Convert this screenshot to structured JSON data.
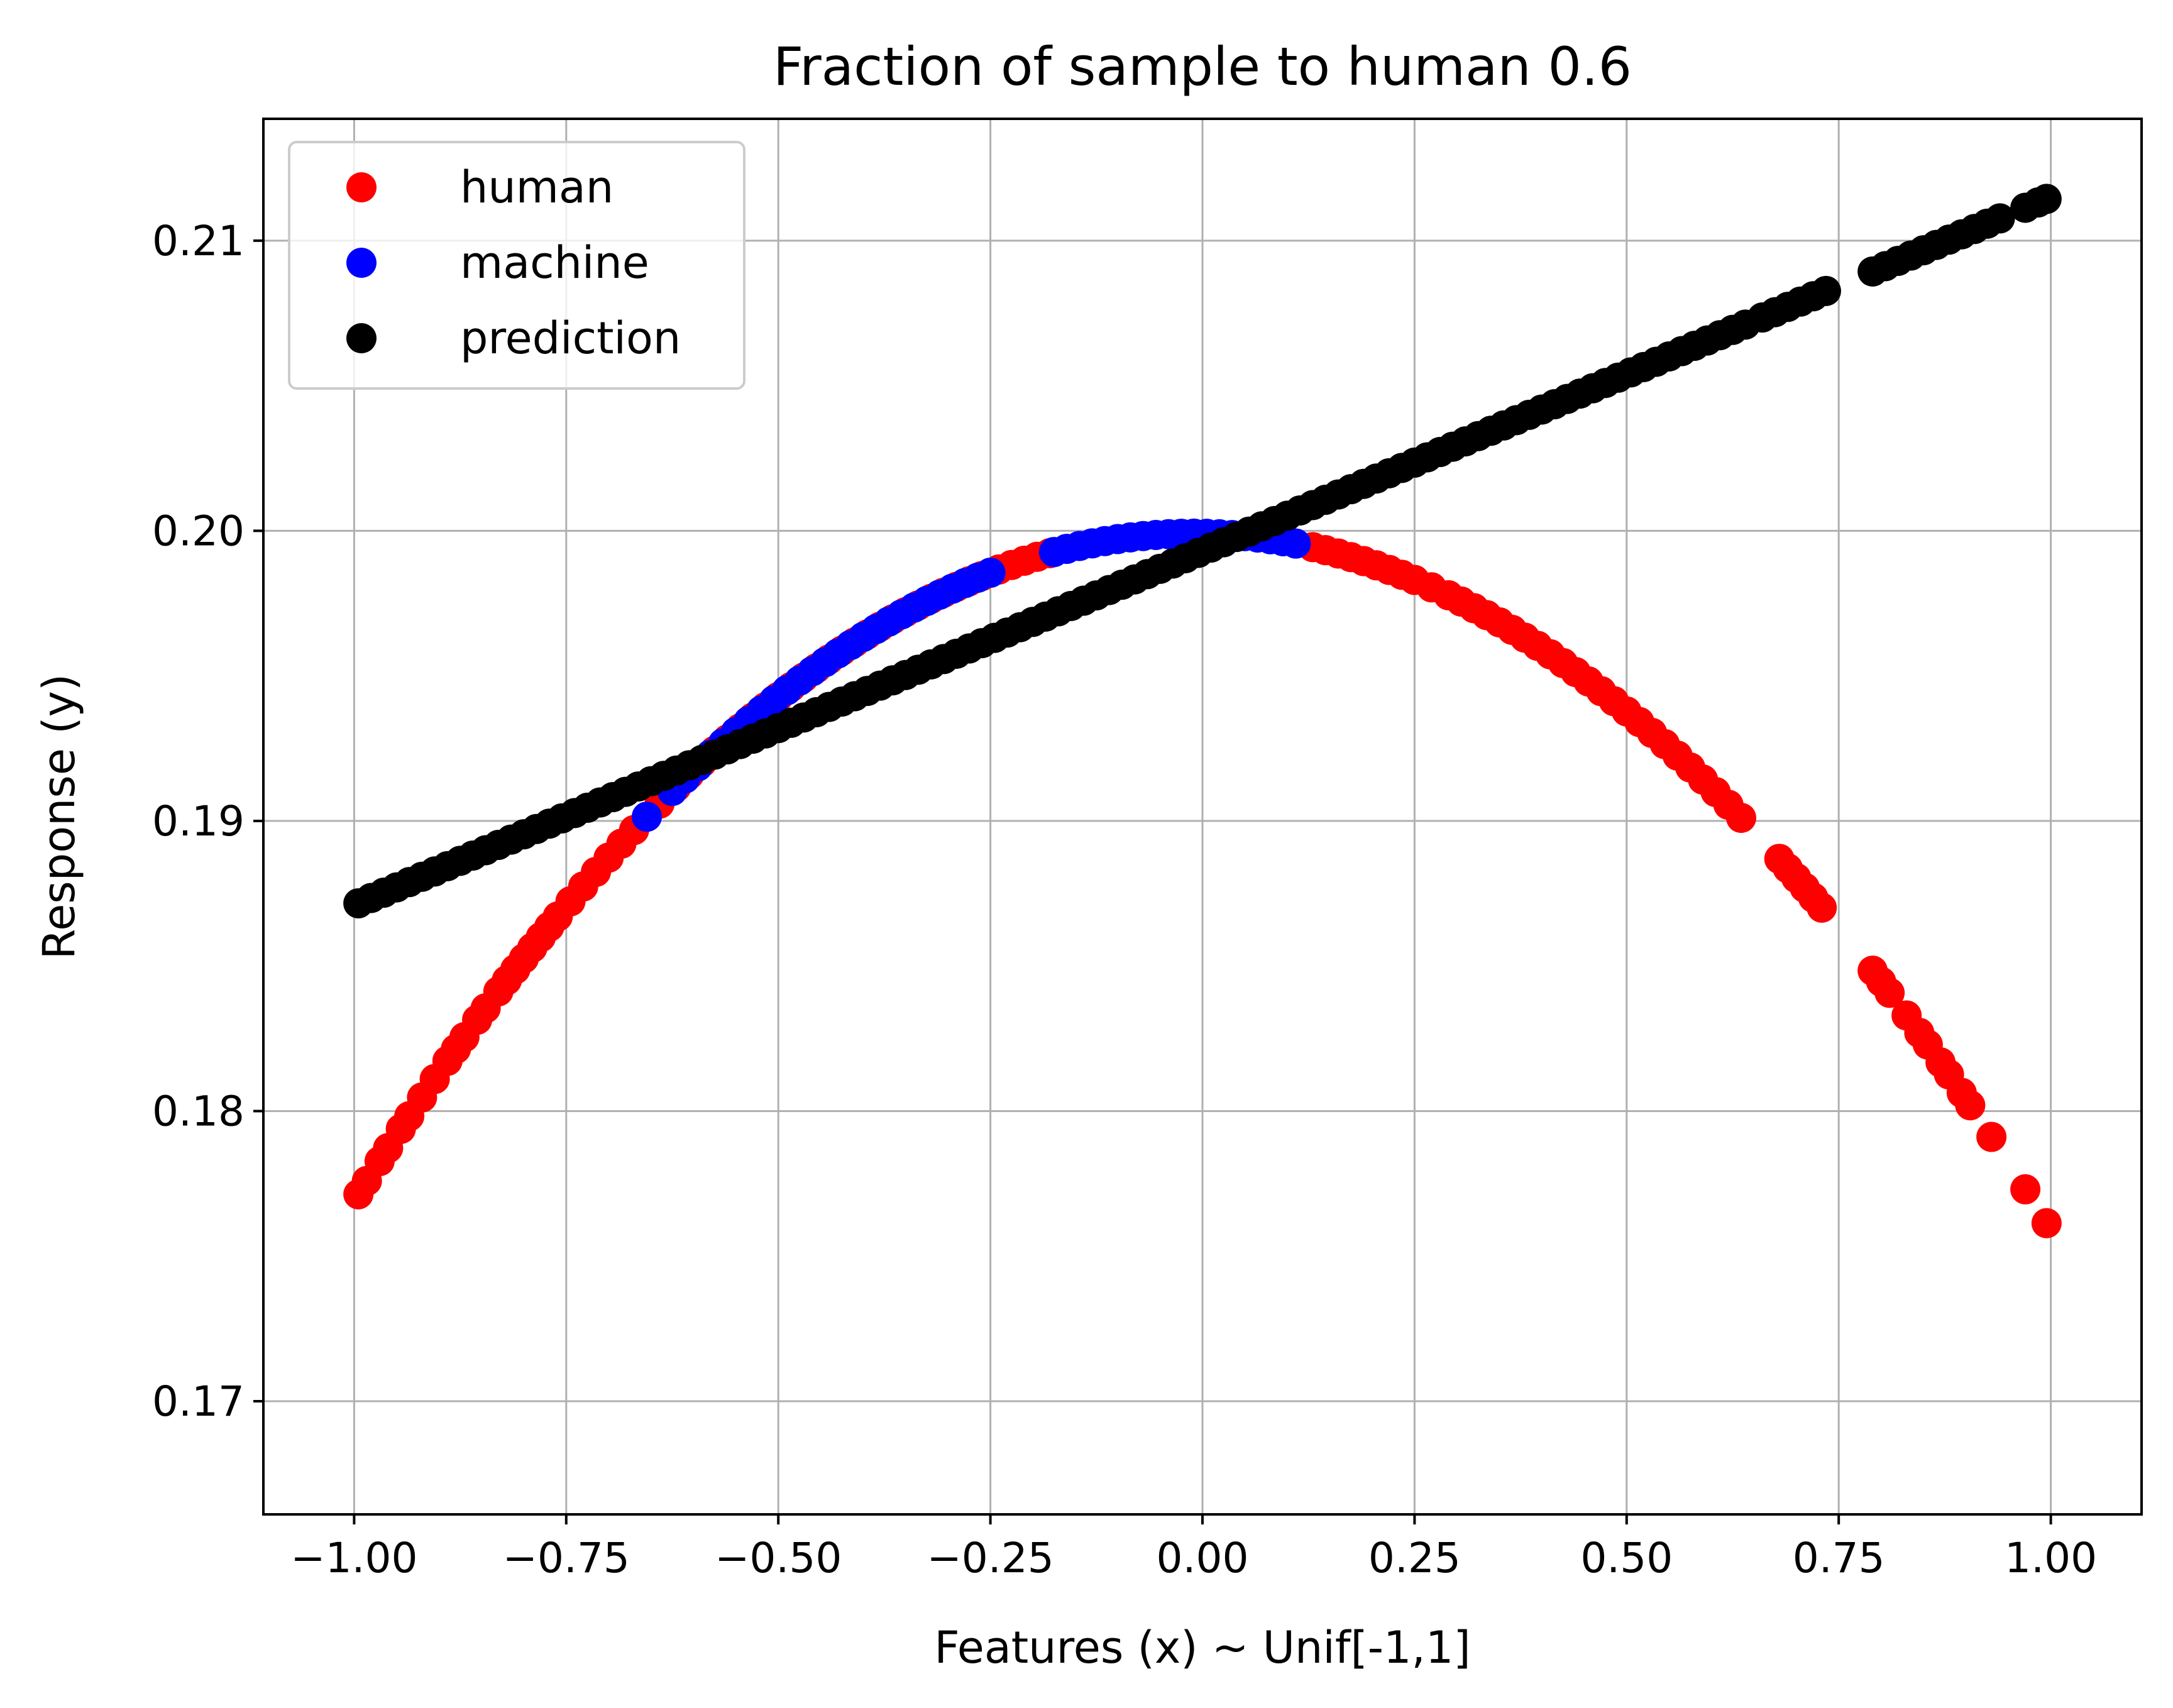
{
  "chart_data": {
    "type": "scatter",
    "title": "Fraction of sample to human 0.6",
    "xlabel": "Features (x) ~ Unif[-1,1]",
    "ylabel": "Response (y)",
    "xlim": [
      -1.107,
      1.107
    ],
    "ylim": [
      0.1661,
      0.2142
    ],
    "grid": true,
    "legend_position": "upper left",
    "xticks": [
      -1.0,
      -0.75,
      -0.5,
      -0.25,
      0.0,
      0.25,
      0.5,
      0.75,
      1.0
    ],
    "xtick_labels": [
      "−1.00",
      "−0.75",
      "−0.50",
      "−0.25",
      "0.00",
      "0.25",
      "0.50",
      "0.75",
      "1.00"
    ],
    "yticks": [
      0.17,
      0.18,
      0.19,
      0.2,
      0.21
    ],
    "ytick_labels": [
      "0.17",
      "0.18",
      "0.19",
      "0.20",
      "0.21"
    ],
    "series": [
      {
        "name": "human",
        "color": "#ff0000",
        "model": "quadratic",
        "coef": [
          0.1999,
          -0.0005,
          -0.0235
        ],
        "x": [
          -0.995,
          -0.985,
          -0.97,
          -0.96,
          -0.945,
          -0.935,
          -0.92,
          -0.905,
          -0.89,
          -0.88,
          -0.87,
          -0.855,
          -0.845,
          -0.83,
          -0.82,
          -0.81,
          -0.8,
          -0.79,
          -0.78,
          -0.77,
          -0.76,
          -0.745,
          -0.73,
          -0.715,
          -0.7,
          -0.685,
          -0.67,
          -0.655,
          -0.64,
          -0.62,
          -0.605,
          -0.59,
          -0.575,
          -0.56,
          -0.545,
          -0.53,
          -0.515,
          -0.5,
          -0.485,
          -0.47,
          -0.455,
          -0.44,
          -0.425,
          -0.41,
          -0.395,
          -0.38,
          -0.365,
          -0.35,
          -0.335,
          -0.32,
          -0.305,
          -0.29,
          -0.275,
          -0.26,
          -0.24,
          -0.225,
          -0.21,
          -0.195,
          -0.18,
          0.13,
          0.145,
          0.16,
          0.175,
          0.19,
          0.205,
          0.22,
          0.235,
          0.25,
          0.27,
          0.29,
          0.305,
          0.32,
          0.335,
          0.35,
          0.365,
          0.38,
          0.395,
          0.41,
          0.425,
          0.44,
          0.455,
          0.47,
          0.485,
          0.5,
          0.515,
          0.53,
          0.545,
          0.56,
          0.575,
          0.59,
          0.605,
          0.62,
          0.635,
          0.68,
          0.69,
          0.7,
          0.71,
          0.72,
          0.73,
          0.79,
          0.8,
          0.81,
          0.83,
          0.845,
          0.855,
          0.87,
          0.88,
          0.895,
          0.905,
          0.93,
          0.97,
          0.995
        ]
      },
      {
        "name": "machine",
        "color": "#0000ff",
        "model": "quadratic",
        "coef": [
          0.1999,
          -0.0005,
          -0.0235
        ],
        "x": [
          -0.655,
          -0.625,
          -0.61,
          -0.595,
          -0.58,
          -0.565,
          -0.55,
          -0.535,
          -0.52,
          -0.505,
          -0.49,
          -0.475,
          -0.46,
          -0.445,
          -0.43,
          -0.415,
          -0.4,
          -0.385,
          -0.37,
          -0.355,
          -0.34,
          -0.325,
          -0.31,
          -0.295,
          -0.28,
          -0.265,
          -0.25,
          -0.175,
          -0.16,
          -0.145,
          -0.13,
          -0.115,
          -0.1,
          -0.085,
          -0.07,
          -0.055,
          -0.04,
          -0.025,
          -0.01,
          0.005,
          0.02,
          0.035,
          0.05,
          0.065,
          0.08,
          0.095,
          0.11
        ]
      },
      {
        "name": "prediction",
        "color": "#000000",
        "model": "linear",
        "coef": [
          0.1993,
          0.0122
        ],
        "x": [
          -0.995,
          -0.98,
          -0.965,
          -0.95,
          -0.935,
          -0.92,
          -0.905,
          -0.89,
          -0.875,
          -0.86,
          -0.845,
          -0.83,
          -0.815,
          -0.8,
          -0.785,
          -0.77,
          -0.755,
          -0.74,
          -0.725,
          -0.71,
          -0.695,
          -0.68,
          -0.665,
          -0.65,
          -0.635,
          -0.62,
          -0.605,
          -0.59,
          -0.575,
          -0.56,
          -0.545,
          -0.53,
          -0.515,
          -0.5,
          -0.485,
          -0.47,
          -0.455,
          -0.44,
          -0.425,
          -0.41,
          -0.395,
          -0.38,
          -0.365,
          -0.35,
          -0.335,
          -0.32,
          -0.305,
          -0.29,
          -0.275,
          -0.26,
          -0.245,
          -0.23,
          -0.215,
          -0.2,
          -0.185,
          -0.17,
          -0.155,
          -0.14,
          -0.125,
          -0.11,
          -0.095,
          -0.08,
          -0.065,
          -0.05,
          -0.035,
          -0.02,
          -0.005,
          0.01,
          0.025,
          0.04,
          0.055,
          0.07,
          0.085,
          0.1,
          0.115,
          0.13,
          0.145,
          0.16,
          0.175,
          0.19,
          0.205,
          0.22,
          0.235,
          0.25,
          0.265,
          0.28,
          0.295,
          0.31,
          0.325,
          0.34,
          0.355,
          0.37,
          0.385,
          0.4,
          0.415,
          0.43,
          0.445,
          0.46,
          0.475,
          0.49,
          0.505,
          0.52,
          0.535,
          0.55,
          0.565,
          0.58,
          0.595,
          0.61,
          0.625,
          0.64,
          0.66,
          0.675,
          0.69,
          0.705,
          0.72,
          0.735,
          0.79,
          0.805,
          0.82,
          0.835,
          0.85,
          0.865,
          0.88,
          0.895,
          0.91,
          0.925,
          0.94,
          0.97,
          0.985,
          0.995
        ]
      }
    ]
  }
}
